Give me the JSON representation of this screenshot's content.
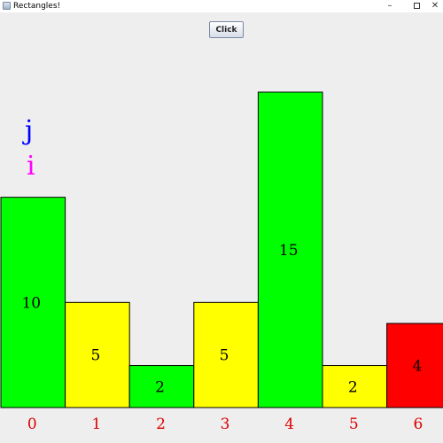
{
  "window": {
    "title": "Rectangles!",
    "min_glyph": "–",
    "close_glyph": "✕"
  },
  "toolbar": {
    "click_label": "Click"
  },
  "markers": {
    "j": {
      "text": "j",
      "color": "#0000FF"
    },
    "i": {
      "text": "i",
      "color": "#FF00FF"
    }
  },
  "colors": {
    "green": "#00FF00",
    "yellow": "#FFFF00",
    "red": "#FF0000",
    "index_label": "#DD0000",
    "background": "#EEEEEE"
  },
  "chart_data": {
    "type": "bar",
    "categories": [
      "0",
      "1",
      "2",
      "3",
      "4",
      "5",
      "6"
    ],
    "values": [
      10,
      5,
      2,
      5,
      15,
      2,
      4
    ],
    "bar_colors": [
      "#00FF00",
      "#FFFF00",
      "#00FF00",
      "#FFFF00",
      "#00FF00",
      "#FFFF00",
      "#FF0000"
    ],
    "title": "",
    "xlabel": "",
    "ylabel": "",
    "ylim": [
      0,
      15
    ],
    "grid": false,
    "legend": "none"
  }
}
